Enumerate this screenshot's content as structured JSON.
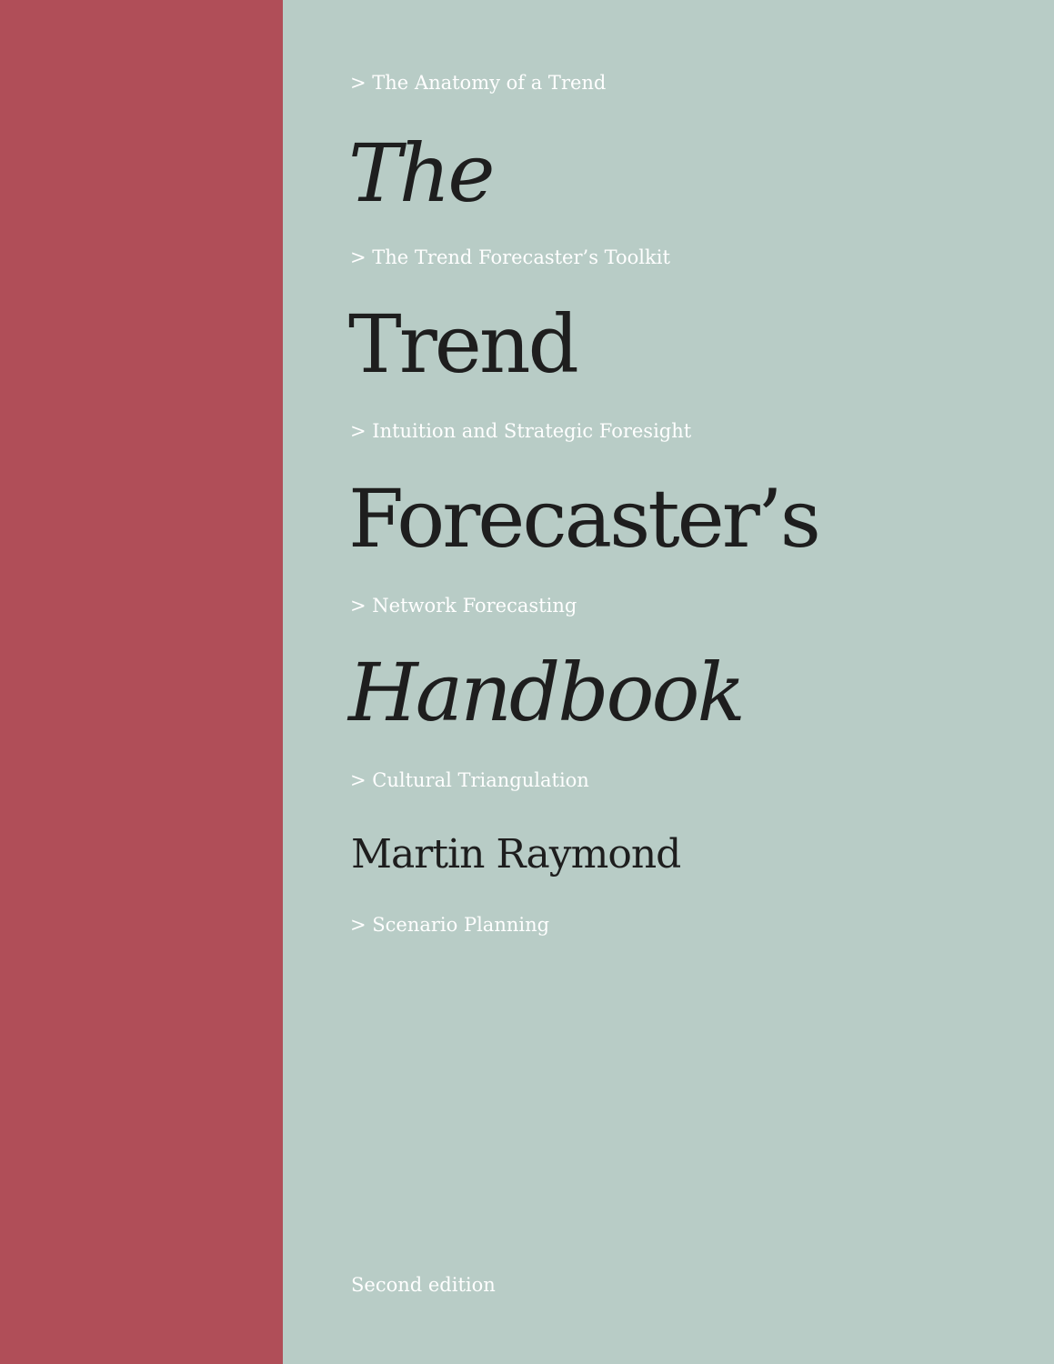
{
  "cover": {
    "colors": {
      "band": "#b04e58",
      "background": "#b8ccc6",
      "title_text": "#1e1e1e",
      "topic_text": "#ffffff"
    },
    "topics": [
      "> The Anatomy of a Trend",
      "> The Trend Forecaster’s Toolkit",
      "> Intuition and Strategic Foresight",
      "> Network Forecasting",
      "> Cultural Triangulation",
      "> Scenario Planning"
    ],
    "title_lines": [
      "The",
      "Trend",
      "Forecaster’s",
      "Handbook"
    ],
    "author": "Martin Raymond",
    "edition": "Second edition"
  }
}
